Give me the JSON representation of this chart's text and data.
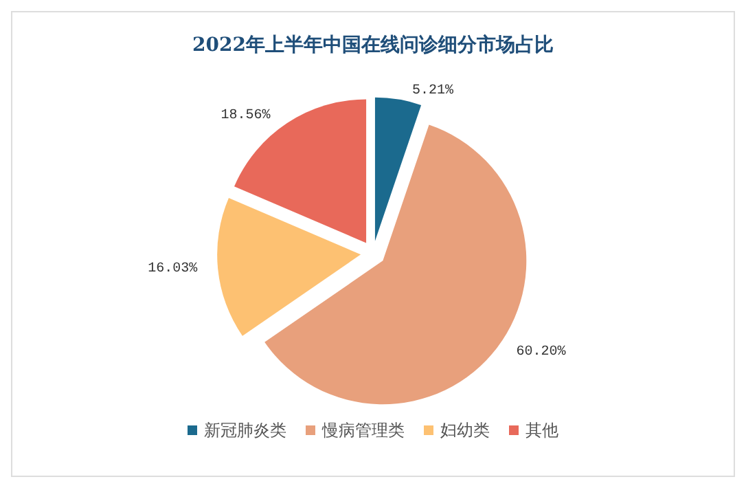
{
  "chart_data": {
    "type": "pie",
    "title": "2022年上半年中国在线问诊细分市场占比",
    "categories": [
      "新冠肺炎类",
      "慢病管理类",
      "妇幼类",
      "其他"
    ],
    "values": [
      5.21,
      60.2,
      16.03,
      18.56
    ],
    "value_labels": [
      "5.21%",
      "60.20%",
      "16.03%",
      "18.56%"
    ],
    "colors": [
      "#1b6a8e",
      "#e8a07c",
      "#fdc172",
      "#e8695a"
    ],
    "legend": "bottom"
  }
}
